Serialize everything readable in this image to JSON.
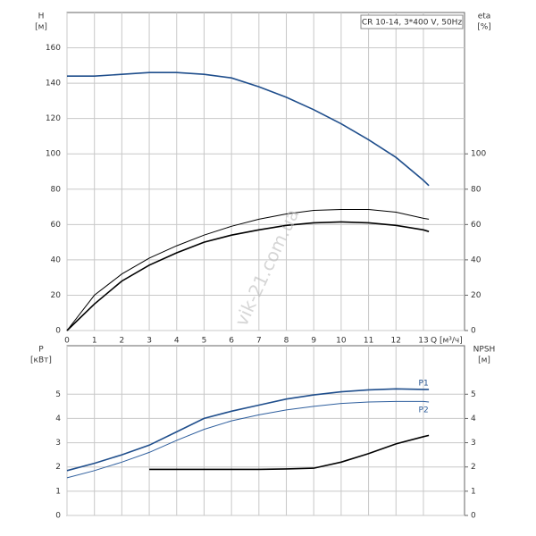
{
  "chart_data": [
    {
      "type": "line",
      "title": "CR 10-14, 3*400 V, 50Hz",
      "ylabel": "H",
      "yunit": "[м]",
      "y2label": "eta",
      "y2unit": "[%]",
      "xlabel": "Q [м³/ч]",
      "watermark": "vik-21.com.ua",
      "x": [
        0,
        1,
        2,
        3,
        4,
        5,
        6,
        7,
        8,
        9,
        10,
        11,
        12,
        13,
        13.2
      ],
      "xlim": [
        0,
        14.5
      ],
      "xticks": [
        0,
        1,
        2,
        3,
        4,
        5,
        6,
        7,
        8,
        9,
        10,
        11,
        12,
        13
      ],
      "ylim": [
        0,
        180
      ],
      "yticks": [
        0,
        20,
        40,
        60,
        80,
        100,
        120,
        140,
        160
      ],
      "y2lim": [
        0,
        180
      ],
      "y2ticks": [
        0,
        20,
        40,
        60,
        80,
        100
      ],
      "grid": true,
      "series": [
        {
          "color": "#1f4e8c",
          "values": [
            144,
            144,
            145,
            146,
            146,
            145,
            143,
            138,
            132,
            125,
            117,
            108,
            98,
            85,
            82
          ]
        },
        {
          "color": "#000000",
          "axis": "y2",
          "values": [
            0,
            20,
            32,
            41,
            48,
            54,
            59,
            63,
            66,
            68,
            68.5,
            68.5,
            67,
            63.5,
            63
          ]
        },
        {
          "color": "#000000",
          "axis": "y2",
          "values": [
            0,
            15,
            28,
            37,
            44,
            50,
            54,
            57,
            59.5,
            61,
            61.5,
            61,
            59.5,
            57,
            56
          ]
        }
      ]
    },
    {
      "type": "line",
      "ylabel": "P",
      "yunit": "[кВт]",
      "y2label": "NPSH",
      "y2unit": "[м]",
      "x": [
        0,
        1,
        2,
        3,
        4,
        5,
        6,
        7,
        8,
        9,
        10,
        11,
        12,
        13,
        13.2
      ],
      "xlim": [
        0,
        14.5
      ],
      "ylim": [
        0,
        7
      ],
      "yticks": [
        0,
        1,
        2,
        3,
        4,
        5
      ],
      "y2lim": [
        0,
        7
      ],
      "y2ticks": [
        0,
        1,
        2,
        3,
        4,
        5
      ],
      "grid": true,
      "series": [
        {
          "name": "P1",
          "color": "#1f4e8c",
          "values": [
            1.85,
            2.15,
            2.5,
            2.9,
            3.45,
            4.0,
            4.3,
            4.55,
            4.8,
            4.97,
            5.1,
            5.18,
            5.22,
            5.2,
            5.2
          ]
        },
        {
          "name": "P2",
          "color": "#2f5f9e",
          "values": [
            1.55,
            1.85,
            2.2,
            2.6,
            3.1,
            3.55,
            3.9,
            4.15,
            4.35,
            4.5,
            4.62,
            4.68,
            4.7,
            4.7,
            4.68
          ]
        },
        {
          "color": "#000000",
          "axis": "y2",
          "values": [
            null,
            null,
            null,
            1.9,
            1.9,
            1.9,
            1.9,
            1.9,
            1.92,
            1.95,
            2.2,
            2.55,
            2.95,
            3.25,
            3.3
          ]
        }
      ]
    }
  ]
}
